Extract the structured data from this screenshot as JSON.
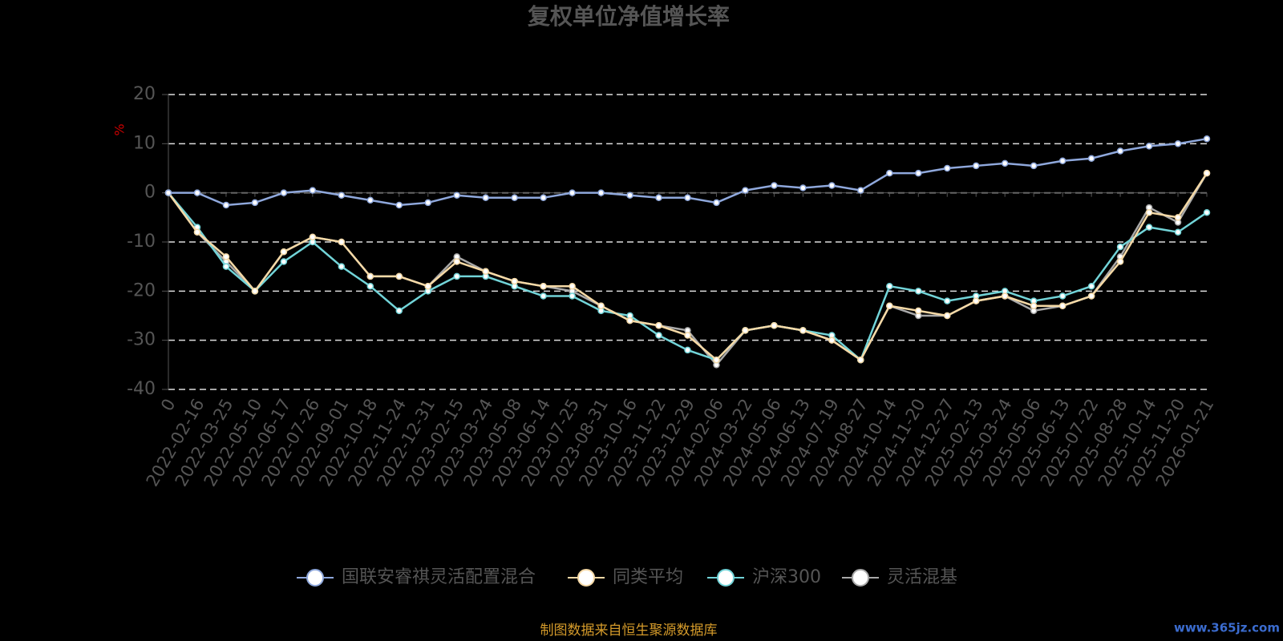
{
  "chart_data": {
    "type": "line",
    "title": "复权单位净值增长率",
    "y_label": "%",
    "categories": [
      "0",
      "2022-02-16",
      "2022-03-25",
      "2022-05-10",
      "2022-06-17",
      "2022-07-26",
      "2022-09-01",
      "2022-10-18",
      "2022-11-24",
      "2022-12-31",
      "2023-02-15",
      "2023-03-24",
      "2023-05-08",
      "2023-06-14",
      "2023-07-25",
      "2023-08-31",
      "2023-10-16",
      "2023-11-22",
      "2023-12-29",
      "2024-02-06",
      "2024-03-22",
      "2024-05-06",
      "2024-06-13",
      "2024-07-19",
      "2024-08-27",
      "2024-10-14",
      "2024-11-20",
      "2024-12-27",
      "2025-02-13",
      "2025-03-24",
      "2025-05-06",
      "2025-06-13",
      "2025-07-22",
      "2025-08-28",
      "2025-10-14",
      "2025-11-20",
      "2026-01-21"
    ],
    "series": [
      {
        "name": "国联安睿祺灵活配置混合",
        "color": "#8fa8dc",
        "values": [
          0,
          0,
          -2.5,
          -2,
          0,
          0.5,
          -0.5,
          -1.5,
          -2.5,
          -2,
          -0.5,
          -1,
          -1,
          -1,
          0,
          0,
          -0.5,
          -1,
          -1,
          -2,
          0.5,
          1.5,
          1,
          1.5,
          0.5,
          4,
          4,
          5,
          5.5,
          6,
          5.5,
          6.5,
          7,
          8.5,
          9.5,
          10,
          11
        ]
      },
      {
        "name": "同类平均",
        "color": "#f5d9a6",
        "values": [
          0,
          -8,
          -13,
          -20,
          -12,
          -9,
          -10,
          -17,
          -17,
          -19,
          -14,
          -16,
          -18,
          -19,
          -19,
          -23,
          -26,
          -27,
          -29,
          -34,
          -28,
          -27,
          -28,
          -30,
          -34,
          -23,
          -24,
          -25,
          -22,
          -21,
          -23,
          -23,
          -21,
          -14,
          -4,
          -5,
          4
        ]
      },
      {
        "name": "沪深300",
        "color": "#72d4d8",
        "values": [
          0,
          -7,
          -15,
          -20,
          -14,
          -10,
          -15,
          -19,
          -24,
          -20,
          -17,
          -17,
          -19,
          -21,
          -21,
          -24,
          -25,
          -29,
          -32,
          -34,
          -28,
          -27,
          -28,
          -29,
          -34,
          -19,
          -20,
          -22,
          -21,
          -20,
          -22,
          -21,
          -19,
          -11,
          -7,
          -8,
          -4
        ]
      },
      {
        "name": "灵活混基",
        "color": "#a9a9a9",
        "values": [
          0,
          -8,
          -14,
          -20,
          -12,
          -9,
          -10,
          -17,
          -17,
          -19,
          -13,
          -16,
          -18,
          -19,
          -20,
          -23,
          -26,
          -27,
          -28,
          -35,
          -28,
          -27,
          -28,
          -30,
          -34,
          -23,
          -25,
          -25,
          -22,
          -21,
          -24,
          -23,
          -21,
          -13,
          -3,
          -6,
          4
        ]
      }
    ],
    "ylim": [
      -40,
      20
    ],
    "yticks": [
      -40,
      -30,
      -20,
      -10,
      0,
      10,
      20
    ],
    "grid": true,
    "source": "制图数据来自恒生聚源数据库",
    "watermark": "www.365jz.com"
  }
}
